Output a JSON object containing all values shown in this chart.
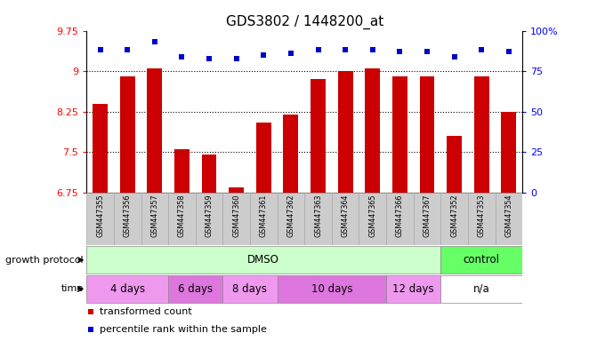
{
  "title": "GDS3802 / 1448200_at",
  "samples": [
    "GSM447355",
    "GSM447356",
    "GSM447357",
    "GSM447358",
    "GSM447359",
    "GSM447360",
    "GSM447361",
    "GSM447362",
    "GSM447363",
    "GSM447364",
    "GSM447365",
    "GSM447366",
    "GSM447367",
    "GSM447352",
    "GSM447353",
    "GSM447354"
  ],
  "bar_values": [
    8.4,
    8.9,
    9.06,
    7.55,
    7.45,
    6.85,
    8.05,
    8.2,
    8.85,
    9.0,
    9.06,
    8.9,
    8.9,
    7.8,
    8.9,
    8.25
  ],
  "percentile_values": [
    88,
    88,
    93,
    84,
    83,
    83,
    85,
    86,
    88,
    88,
    88,
    87,
    87,
    84,
    88,
    87
  ],
  "bar_color": "#cc0000",
  "dot_color": "#0000cc",
  "ylim_left": [
    6.75,
    9.75
  ],
  "ylim_right": [
    0,
    100
  ],
  "yticks_left": [
    6.75,
    7.5,
    8.25,
    9.0,
    9.75
  ],
  "ytick_labels_left": [
    "6.75",
    "7.5",
    "8.25",
    "9",
    "9.75"
  ],
  "yticks_right": [
    0,
    25,
    50,
    75,
    100
  ],
  "ytick_labels_right": [
    "0",
    "25",
    "50",
    "75",
    "100%"
  ],
  "grid_lines_at": [
    7.5,
    8.25,
    9.0
  ],
  "growth_protocol_groups": [
    {
      "label": "DMSO",
      "start": 0,
      "end": 13,
      "color": "#ccffcc"
    },
    {
      "label": "control",
      "start": 13,
      "end": 16,
      "color": "#66ff66"
    }
  ],
  "time_groups": [
    {
      "label": "4 days",
      "start": 0,
      "end": 3,
      "color": "#ee99ee"
    },
    {
      "label": "6 days",
      "start": 3,
      "end": 5,
      "color": "#dd77dd"
    },
    {
      "label": "8 days",
      "start": 5,
      "end": 7,
      "color": "#ee99ee"
    },
    {
      "label": "10 days",
      "start": 7,
      "end": 11,
      "color": "#dd77dd"
    },
    {
      "label": "12 days",
      "start": 11,
      "end": 13,
      "color": "#ee99ee"
    },
    {
      "label": "n/a",
      "start": 13,
      "end": 16,
      "color": "#ffffff"
    }
  ],
  "legend_items": [
    {
      "label": "transformed count",
      "color": "#cc0000"
    },
    {
      "label": "percentile rank within the sample",
      "color": "#0000cc"
    }
  ],
  "sample_bg_color": "#cccccc",
  "fig_bg_color": "#ffffff"
}
